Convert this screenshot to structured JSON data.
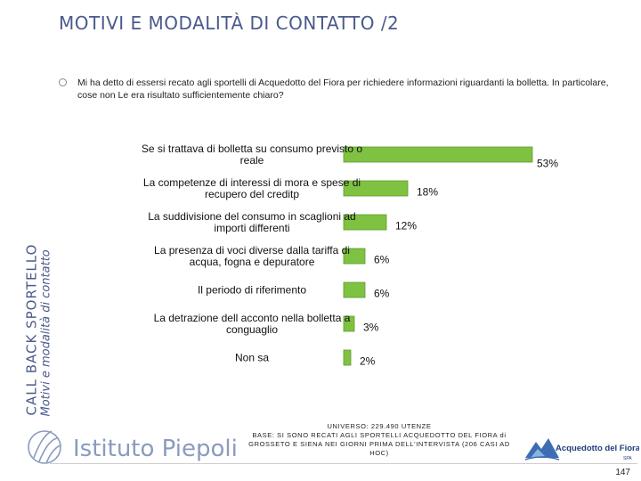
{
  "sidebar": {
    "main": "CALL BACK SPORTELLO",
    "sub": "Motivi e modalità di contatto"
  },
  "page_title": "MOTIVI E MODALITÀ DI CONTATTO /2",
  "question": "Mi ha detto di essersi recato agli sportelli di Acquedotto del Fiora per richiedere informazioni riguardanti la bolletta. In particolare, cose non Le era risultato sufficientemente chiaro?",
  "chart_data": {
    "type": "bar",
    "orientation": "horizontal",
    "categories": [
      [
        "Se si trattava di bolletta su consumo previsto o",
        "reale"
      ],
      [
        "La competenze di interessi di mora e spese di",
        "recupero del creditp"
      ],
      [
        "La suddivisione del consumo in scaglioni ad",
        "importi differenti"
      ],
      [
        "La presenza di voci diverse dalla tariffa di",
        "acqua, fogna e depuratore"
      ],
      [
        "Il periodo di riferimento"
      ],
      [
        "La detrazione dell acconto nella bolletta a",
        "conguaglio"
      ],
      [
        "Non sa"
      ]
    ],
    "values": [
      53,
      18,
      12,
      6,
      6,
      3,
      2
    ],
    "labels": [
      "53%",
      "18%",
      "12%",
      "6%",
      "6%",
      "3%",
      "2%"
    ],
    "unit": "%",
    "bar_color": "#7fc241",
    "xlim": [
      0,
      60
    ]
  },
  "footer": {
    "brand": "Istituto Piepoli",
    "universe": "UNIVERSO: 229.490 UTENZE",
    "base": "BASE: SI SONO RECATI AGLI SPORTELLI ACQUEDOTTO DEL FIORA di GROSSETO E SIENA NEI GIORNI PRIMA DELL'INTERVISTA (206 CASI AD HOC)",
    "client": "Acquedotto del Fiora",
    "client_suffix": "SPA",
    "page": "147"
  }
}
